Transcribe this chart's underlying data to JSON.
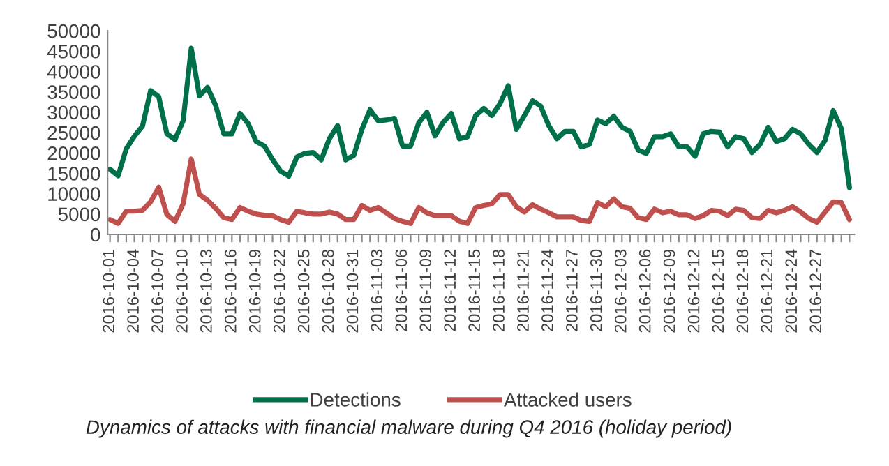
{
  "chart_data": {
    "type": "line",
    "categories": [
      "2016-10-01",
      null,
      null,
      "2016-10-04",
      null,
      null,
      "2016-10-07",
      null,
      null,
      "2016-10-10",
      null,
      null,
      "2016-10-13",
      null,
      null,
      "2016-10-16",
      null,
      null,
      "2016-10-19",
      null,
      null,
      "2016-10-22",
      null,
      null,
      "2016-10-25",
      null,
      null,
      "2016-10-28",
      null,
      null,
      "2016-10-31",
      null,
      null,
      "2016-11-03",
      null,
      null,
      "2016-11-06",
      null,
      null,
      "2016-11-09",
      null,
      null,
      "2016-11-12",
      null,
      null,
      "2016-11-15",
      null,
      null,
      "2016-11-18",
      null,
      null,
      "2016-11-21",
      null,
      null,
      "2016-11-24",
      null,
      null,
      "2016-11-27",
      null,
      null,
      "2016-11-30",
      null,
      null,
      "2016-12-03",
      null,
      null,
      "2016-12-06",
      null,
      null,
      "2016-12-09",
      null,
      null,
      "2016-12-12",
      null,
      null,
      "2016-12-15",
      null,
      null,
      "2016-12-18",
      null,
      null,
      "2016-12-21",
      null,
      null,
      "2016-12-24",
      null,
      null,
      "2016-12-27",
      null,
      null,
      null,
      null
    ],
    "series": [
      {
        "name": "Detections",
        "color": "#00704a",
        "values": [
          16000,
          14400,
          21000,
          24100,
          26600,
          35300,
          33800,
          24700,
          23300,
          27900,
          45700,
          34000,
          36100,
          31700,
          24700,
          24700,
          29700,
          27200,
          22800,
          21700,
          18400,
          15500,
          14300,
          19000,
          19900,
          20100,
          18300,
          23500,
          26700,
          18300,
          19400,
          25800,
          30600,
          27900,
          28100,
          28500,
          21700,
          21700,
          27400,
          30000,
          24200,
          27500,
          29700,
          23500,
          24000,
          29200,
          30900,
          29200,
          32100,
          36500,
          25800,
          29200,
          32800,
          31500,
          26700,
          23500,
          25300,
          25300,
          21500,
          22100,
          28100,
          27200,
          29000,
          26300,
          25300,
          20700,
          19900,
          24000,
          24000,
          24700,
          21500,
          21500,
          19200,
          24700,
          25300,
          25100,
          21500,
          24000,
          23500,
          20100,
          22100,
          26300,
          22800,
          23500,
          25800,
          24700,
          22100,
          20100,
          23100,
          30400,
          26000,
          11500
        ]
      },
      {
        "name": "Attacked users",
        "color": "#c0504d",
        "values": [
          3650,
          2700,
          5700,
          5700,
          5900,
          8000,
          11600,
          4900,
          3200,
          7500,
          18500,
          9800,
          8400,
          6400,
          4100,
          3650,
          6600,
          5700,
          5000,
          4700,
          4600,
          3650,
          3000,
          5700,
          5300,
          5000,
          5000,
          5500,
          5000,
          3650,
          3650,
          7100,
          5900,
          6600,
          5300,
          3900,
          3200,
          2700,
          6600,
          5300,
          4600,
          4600,
          4600,
          3200,
          2700,
          6600,
          7100,
          7500,
          9800,
          9800,
          6800,
          5500,
          7300,
          6200,
          5300,
          4300,
          4300,
          4300,
          3400,
          3200,
          7800,
          6800,
          8700,
          6800,
          6400,
          4100,
          3650,
          6200,
          5300,
          5700,
          4800,
          4800,
          3900,
          4600,
          5900,
          5700,
          4600,
          6200,
          5900,
          4100,
          3900,
          5900,
          5300,
          5900,
          6800,
          5500,
          3900,
          3000,
          5500,
          8000,
          7800,
          3650
        ]
      }
    ],
    "ylim": [
      0,
      50000
    ],
    "yticks": [
      0,
      5000,
      10000,
      15000,
      20000,
      25000,
      30000,
      35000,
      40000,
      45000,
      50000
    ],
    "grid": false,
    "legend": "bottom",
    "marker": "none",
    "line_style": "solid",
    "annotations": [
      "Dynamics of attacks with financial malware during Q4 2016 (holiday period)"
    ]
  }
}
